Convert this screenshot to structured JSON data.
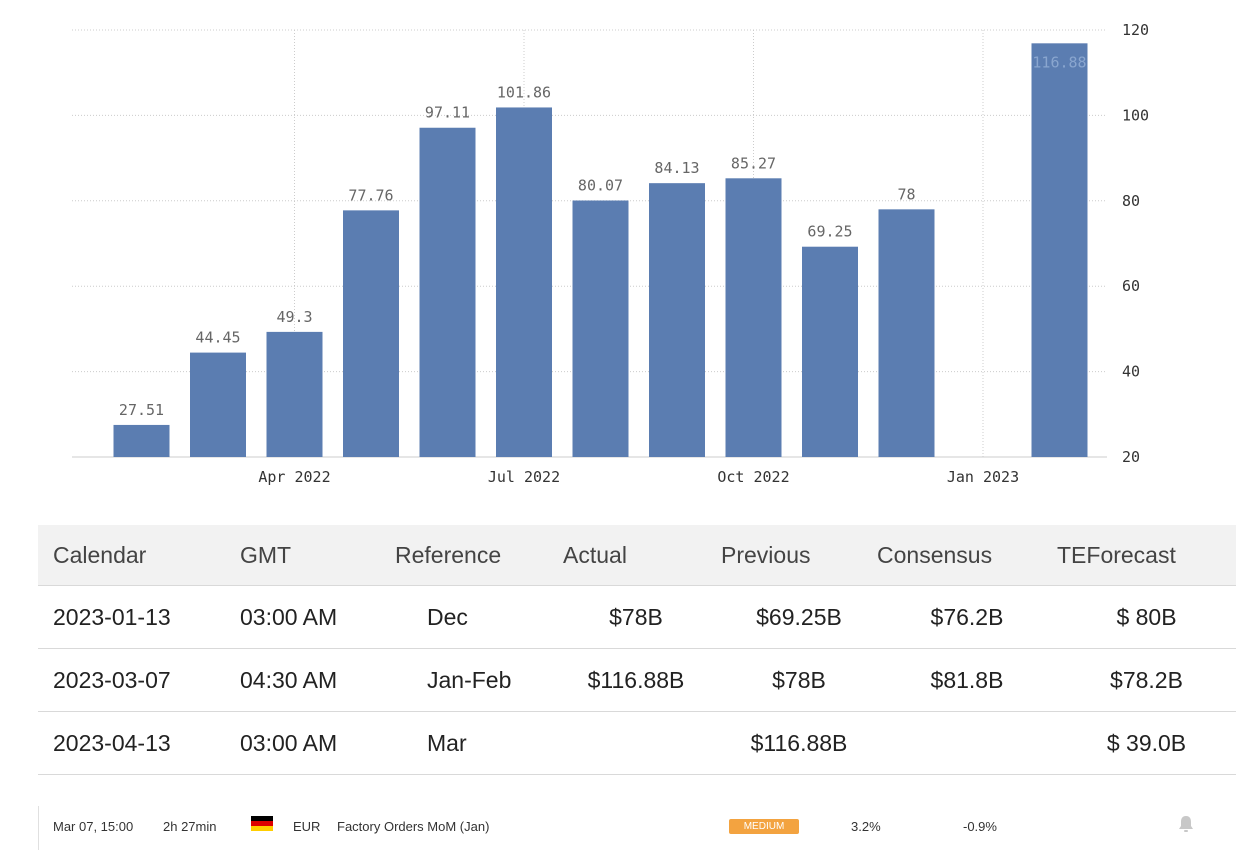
{
  "chart_data": {
    "type": "bar",
    "categories": [
      "Feb 2022",
      "Mar 2022",
      "Apr 2022",
      "May 2022",
      "Jun 2022",
      "Jul 2022",
      "Aug 2022",
      "Sep 2022",
      "Oct 2022",
      "Nov 2022",
      "Dec 2022",
      "Jan 2023",
      "Feb 2023"
    ],
    "values": [
      27.51,
      44.45,
      49.3,
      77.76,
      97.11,
      101.86,
      80.07,
      84.13,
      85.27,
      69.25,
      78,
      null,
      116.88
    ],
    "data_labels": [
      "27.51",
      "44.45",
      "49.3",
      "77.76",
      "97.11",
      "101.86",
      "80.07",
      "84.13",
      "85.27",
      "69.25",
      "78",
      "",
      "116.88"
    ],
    "x_tick_labels": [
      "Apr 2022",
      "Jul 2022",
      "Oct 2022",
      "Jan 2023"
    ],
    "y_ticks": [
      20,
      40,
      60,
      80,
      100,
      120
    ],
    "ylim": [
      20,
      120
    ],
    "y_axis_position": "right",
    "grid": true,
    "bar_color": "#5b7db1",
    "title": "",
    "xlabel": "",
    "ylabel": ""
  },
  "table": {
    "headers": [
      "Calendar",
      "GMT",
      "Reference",
      "Actual",
      "Previous",
      "Consensus",
      "TEForecast"
    ],
    "rows": [
      [
        "2023-01-13",
        "03:00 AM",
        "Dec",
        "$78B",
        "$69.25B",
        "$76.2B",
        "$ 80B"
      ],
      [
        "2023-03-07",
        "04:30 AM",
        "Jan-Feb",
        "$116.88B",
        "$78B",
        "$81.8B",
        "$78.2B"
      ],
      [
        "2023-04-13",
        "03:00 AM",
        "Mar",
        "",
        "$116.88B",
        "",
        "$ 39.0B"
      ]
    ]
  },
  "event": {
    "datetime": "Mar 07, 15:00",
    "countdown": "2h 27min",
    "flag_icon": "germany-flag-icon",
    "currency": "EUR",
    "name": "Factory Orders MoM (Jan)",
    "importance": "MEDIUM",
    "importance_color": "#f3a340",
    "actual": "3.2%",
    "previous": "-0.9%",
    "alert_icon": "bell-icon"
  }
}
